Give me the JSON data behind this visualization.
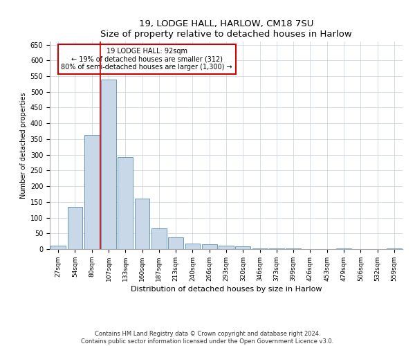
{
  "title1": "19, LODGE HALL, HARLOW, CM18 7SU",
  "title2": "Size of property relative to detached houses in Harlow",
  "xlabel": "Distribution of detached houses by size in Harlow",
  "ylabel": "Number of detached properties",
  "footnote": "Contains HM Land Registry data © Crown copyright and database right 2024.\nContains public sector information licensed under the Open Government Licence v3.0.",
  "annotation_title": "19 LODGE HALL: 92sqm",
  "annotation_line1": "← 19% of detached houses are smaller (312)",
  "annotation_line2": "80% of semi-detached houses are larger (1,300) →",
  "bar_color": "#c8d8e8",
  "bar_edge_color": "#5b8db8",
  "vline_color": "#cc0000",
  "annotation_box_color": "#ffffff",
  "annotation_box_edge": "#cc0000",
  "categories": [
    "27sqm",
    "54sqm",
    "80sqm",
    "107sqm",
    "133sqm",
    "160sqm",
    "187sqm",
    "213sqm",
    "240sqm",
    "266sqm",
    "293sqm",
    "320sqm",
    "346sqm",
    "373sqm",
    "399sqm",
    "426sqm",
    "453sqm",
    "479sqm",
    "506sqm",
    "532sqm",
    "559sqm"
  ],
  "values": [
    10,
    135,
    362,
    538,
    292,
    160,
    67,
    38,
    17,
    15,
    10,
    8,
    3,
    2,
    2,
    0,
    0,
    3,
    0,
    0,
    3
  ],
  "ylim": [
    0,
    660
  ],
  "yticks": [
    0,
    50,
    100,
    150,
    200,
    250,
    300,
    350,
    400,
    450,
    500,
    550,
    600,
    650
  ]
}
